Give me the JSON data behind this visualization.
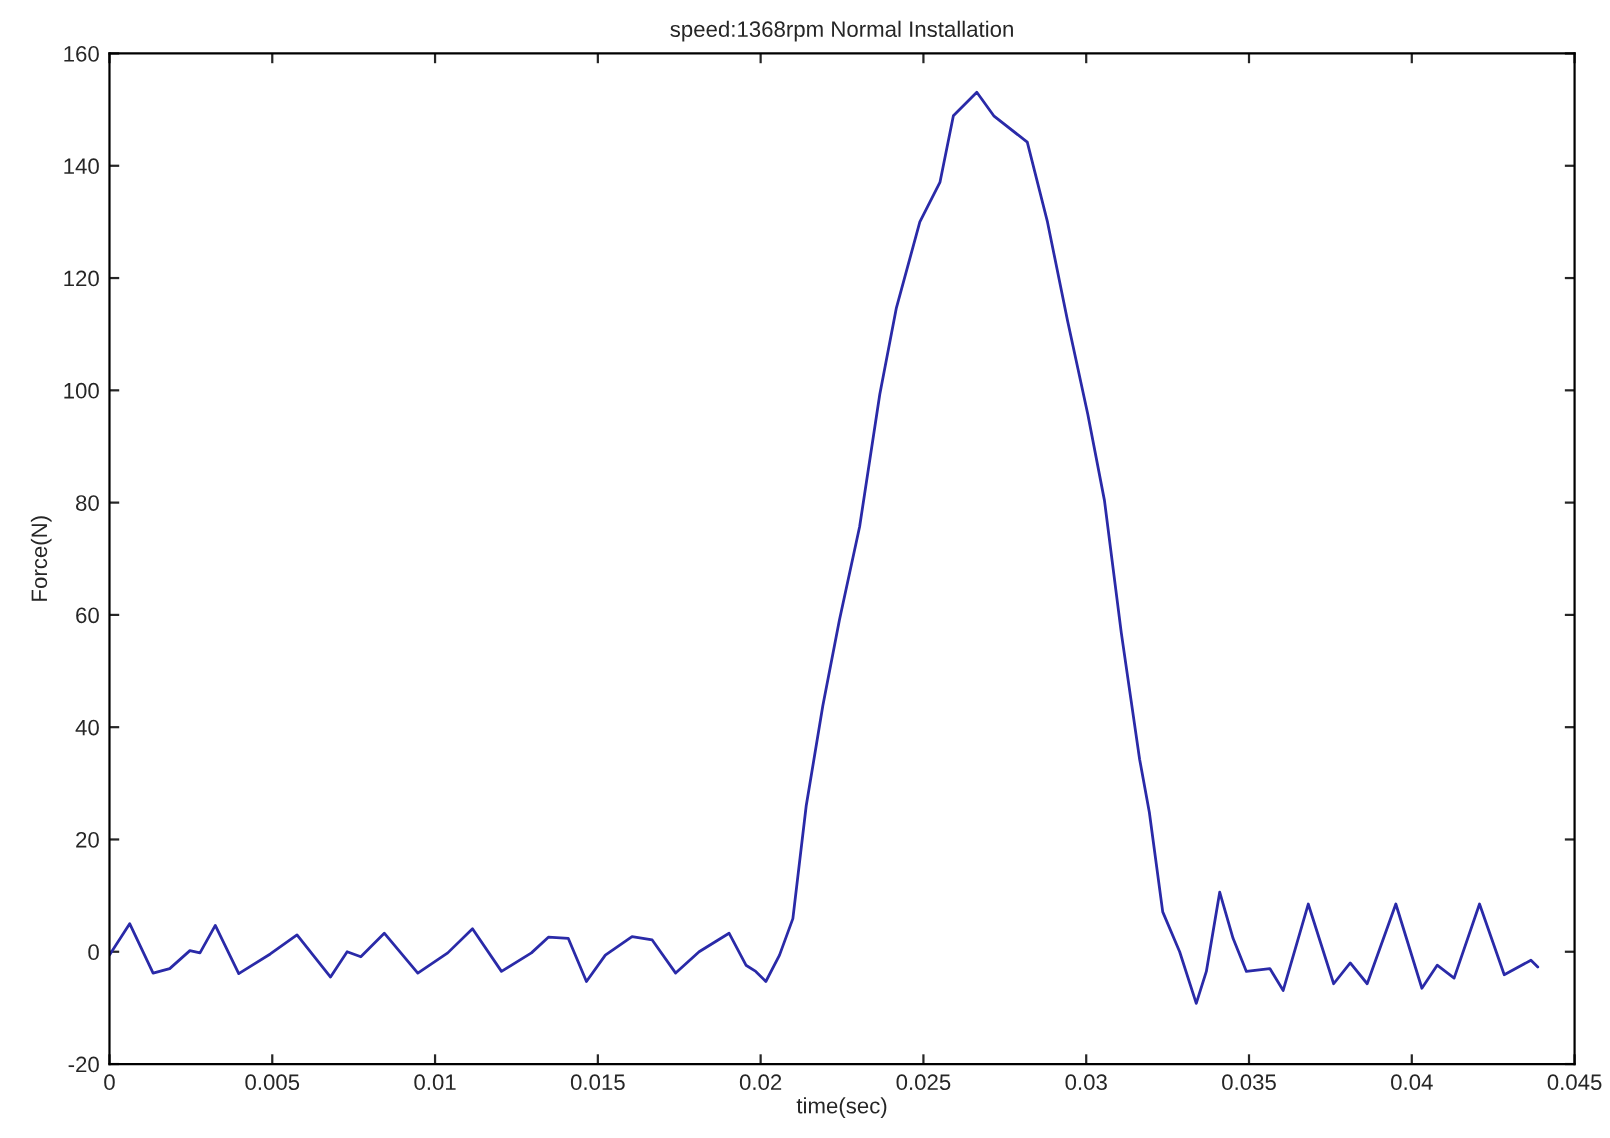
{
  "chart_data": {
    "type": "line",
    "title": "speed:1368rpm Normal Installation",
    "xlabel": "time(sec)",
    "ylabel": "Force(N)",
    "series": [
      {
        "color": "#2a2aa8",
        "x": [
          0,
          0.00062,
          0.00134,
          0.00185,
          0.00247,
          0.00278,
          0.00325,
          0.00397,
          0.00494,
          0.00576,
          0.00679,
          0.0073,
          0.00772,
          0.00844,
          0.00947,
          0.01039,
          0.01115,
          0.01204,
          0.01296,
          0.01348,
          0.01409,
          0.01465,
          0.01523,
          0.01605,
          0.01667,
          0.01739,
          0.01811,
          0.01903,
          0.01955,
          0.01985,
          0.02016,
          0.02058,
          0.02099,
          0.0214,
          0.02191,
          0.02242,
          0.02304,
          0.02366,
          0.02417,
          0.02489,
          0.02551,
          0.02592,
          0.02664,
          0.02716,
          0.02819,
          0.02881,
          0.02943,
          0.03005,
          0.03056,
          0.03108,
          0.03164,
          0.03194,
          0.03235,
          0.03287,
          0.03338,
          0.03369,
          0.0341,
          0.03451,
          0.03492,
          0.03564,
          0.03605,
          0.03682,
          0.0376,
          0.03811,
          0.03863,
          0.03951,
          0.04031,
          0.04078,
          0.0413,
          0.04208,
          0.04284,
          0.04366,
          0.04387
        ],
        "values": [
          -0.6,
          5.0,
          -3.8,
          -3.0,
          0.2,
          -0.2,
          4.7,
          -3.9,
          -0.4,
          3.0,
          -4.5,
          0,
          -0.9,
          3.3,
          -3.8,
          -0.2,
          4.1,
          -3.5,
          -0.2,
          2.6,
          2.4,
          -5.3,
          -0.6,
          2.7,
          2.1,
          -3.8,
          0,
          3.3,
          -2.4,
          -3.5,
          -5.3,
          -0.6,
          5.9,
          26.0,
          43.8,
          59.1,
          75.7,
          99.3,
          114.7,
          130,
          137.1,
          148.9,
          153.1,
          148.9,
          144.2,
          130,
          112.3,
          95.7,
          80.4,
          56.7,
          34.3,
          24.8,
          7.1,
          0,
          -9.2,
          -3.5,
          10.6,
          2.4,
          -3.5,
          -3.0,
          -6.9,
          8.5,
          -5.7,
          -2.0,
          -5.7,
          8.5,
          -6.5,
          -2.4,
          -4.7,
          8.5,
          -4.1,
          -1.5,
          -2.7
        ]
      }
    ],
    "xlim": [
      0,
      0.045
    ],
    "xticks": [
      0,
      0.005,
      0.01,
      0.015,
      0.02,
      0.025,
      0.03,
      0.035,
      0.04,
      0.045
    ],
    "ylim": [
      -20,
      160
    ],
    "yticks": [
      -20,
      0,
      20,
      40,
      60,
      80,
      100,
      120,
      140,
      160
    ],
    "grid": false,
    "legend": false,
    "marker": "none",
    "line_style": "solid"
  }
}
